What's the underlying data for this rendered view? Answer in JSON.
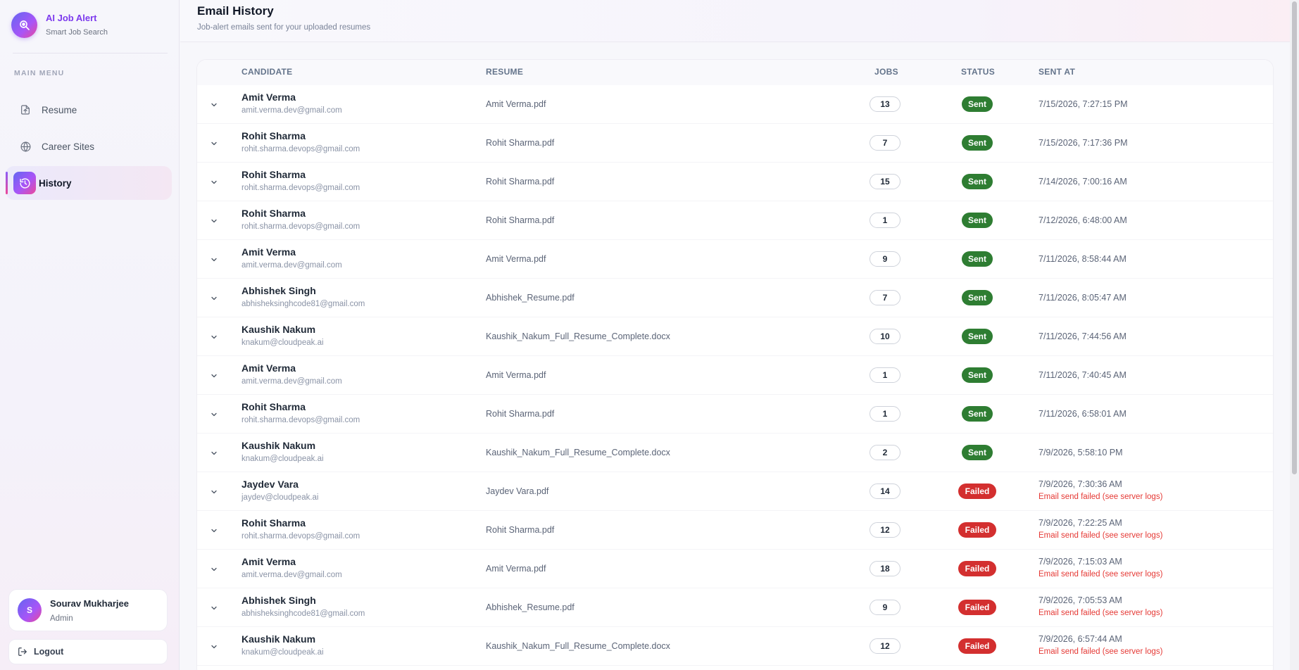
{
  "brand": {
    "title": "AI Job Alert",
    "subtitle": "Smart Job Search",
    "icon": "search-logo-icon"
  },
  "sidebar": {
    "caption": "MAIN MENU",
    "items": [
      {
        "label": "Resume",
        "icon": "upload-file-icon"
      },
      {
        "label": "Career Sites",
        "icon": "globe-icon"
      },
      {
        "label": "History",
        "icon": "history-icon"
      }
    ],
    "active": "History"
  },
  "user": {
    "initial": "S",
    "name": "Sourav Mukharjee",
    "role": "Admin"
  },
  "logout": {
    "label": "Logout",
    "icon": "logout-icon"
  },
  "page": {
    "title": "Email History",
    "subtitle": "Job-alert emails sent for your uploaded resumes"
  },
  "table": {
    "headers": {
      "candidate": "CANDIDATE",
      "resume": "RESUME",
      "jobs": "JOBS",
      "status": "STATUS",
      "sent_at": "SENT AT"
    },
    "rows": [
      {
        "name": "Amit Verma",
        "email": "amit.verma.dev@gmail.com",
        "resume": "Amit Verma.pdf",
        "jobs": "13",
        "status": "Sent",
        "sent_at": "7/15/2026, 7:27:15 PM",
        "error": ""
      },
      {
        "name": "Rohit Sharma",
        "email": "rohit.sharma.devops@gmail.com",
        "resume": "Rohit Sharma.pdf",
        "jobs": "7",
        "status": "Sent",
        "sent_at": "7/15/2026, 7:17:36 PM",
        "error": ""
      },
      {
        "name": "Rohit Sharma",
        "email": "rohit.sharma.devops@gmail.com",
        "resume": "Rohit Sharma.pdf",
        "jobs": "15",
        "status": "Sent",
        "sent_at": "7/14/2026, 7:00:16 AM",
        "error": ""
      },
      {
        "name": "Rohit Sharma",
        "email": "rohit.sharma.devops@gmail.com",
        "resume": "Rohit Sharma.pdf",
        "jobs": "1",
        "status": "Sent",
        "sent_at": "7/12/2026, 6:48:00 AM",
        "error": ""
      },
      {
        "name": "Amit Verma",
        "email": "amit.verma.dev@gmail.com",
        "resume": "Amit Verma.pdf",
        "jobs": "9",
        "status": "Sent",
        "sent_at": "7/11/2026, 8:58:44 AM",
        "error": ""
      },
      {
        "name": "Abhishek Singh",
        "email": "abhisheksinghcode81@gmail.com",
        "resume": "Abhishek_Resume.pdf",
        "jobs": "7",
        "status": "Sent",
        "sent_at": "7/11/2026, 8:05:47 AM",
        "error": ""
      },
      {
        "name": "Kaushik Nakum",
        "email": "knakum@cloudpeak.ai",
        "resume": "Kaushik_Nakum_Full_Resume_Complete.docx",
        "jobs": "10",
        "status": "Sent",
        "sent_at": "7/11/2026, 7:44:56 AM",
        "error": ""
      },
      {
        "name": "Amit Verma",
        "email": "amit.verma.dev@gmail.com",
        "resume": "Amit Verma.pdf",
        "jobs": "1",
        "status": "Sent",
        "sent_at": "7/11/2026, 7:40:45 AM",
        "error": ""
      },
      {
        "name": "Rohit Sharma",
        "email": "rohit.sharma.devops@gmail.com",
        "resume": "Rohit Sharma.pdf",
        "jobs": "1",
        "status": "Sent",
        "sent_at": "7/11/2026, 6:58:01 AM",
        "error": ""
      },
      {
        "name": "Kaushik Nakum",
        "email": "knakum@cloudpeak.ai",
        "resume": "Kaushik_Nakum_Full_Resume_Complete.docx",
        "jobs": "2",
        "status": "Sent",
        "sent_at": "7/9/2026, 5:58:10 PM",
        "error": ""
      },
      {
        "name": "Jaydev Vara",
        "email": "jaydev@cloudpeak.ai",
        "resume": "Jaydev Vara.pdf",
        "jobs": "14",
        "status": "Failed",
        "sent_at": "7/9/2026, 7:30:36 AM",
        "error": "Email send failed (see server logs)"
      },
      {
        "name": "Rohit Sharma",
        "email": "rohit.sharma.devops@gmail.com",
        "resume": "Rohit Sharma.pdf",
        "jobs": "12",
        "status": "Failed",
        "sent_at": "7/9/2026, 7:22:25 AM",
        "error": "Email send failed (see server logs)"
      },
      {
        "name": "Amit Verma",
        "email": "amit.verma.dev@gmail.com",
        "resume": "Amit Verma.pdf",
        "jobs": "18",
        "status": "Failed",
        "sent_at": "7/9/2026, 7:15:03 AM",
        "error": "Email send failed (see server logs)"
      },
      {
        "name": "Abhishek Singh",
        "email": "abhisheksinghcode81@gmail.com",
        "resume": "Abhishek_Resume.pdf",
        "jobs": "9",
        "status": "Failed",
        "sent_at": "7/9/2026, 7:05:53 AM",
        "error": "Email send failed (see server logs)"
      },
      {
        "name": "Kaushik Nakum",
        "email": "knakum@cloudpeak.ai",
        "resume": "Kaushik_Nakum_Full_Resume_Complete.docx",
        "jobs": "12",
        "status": "Failed",
        "sent_at": "7/9/2026, 6:57:44 AM",
        "error": "Email send failed (see server logs)"
      }
    ]
  },
  "colors": {
    "accent": "#7c3aed",
    "sent": "#2e7d32",
    "failed": "#d32f2f",
    "error_text": "#e53935"
  }
}
